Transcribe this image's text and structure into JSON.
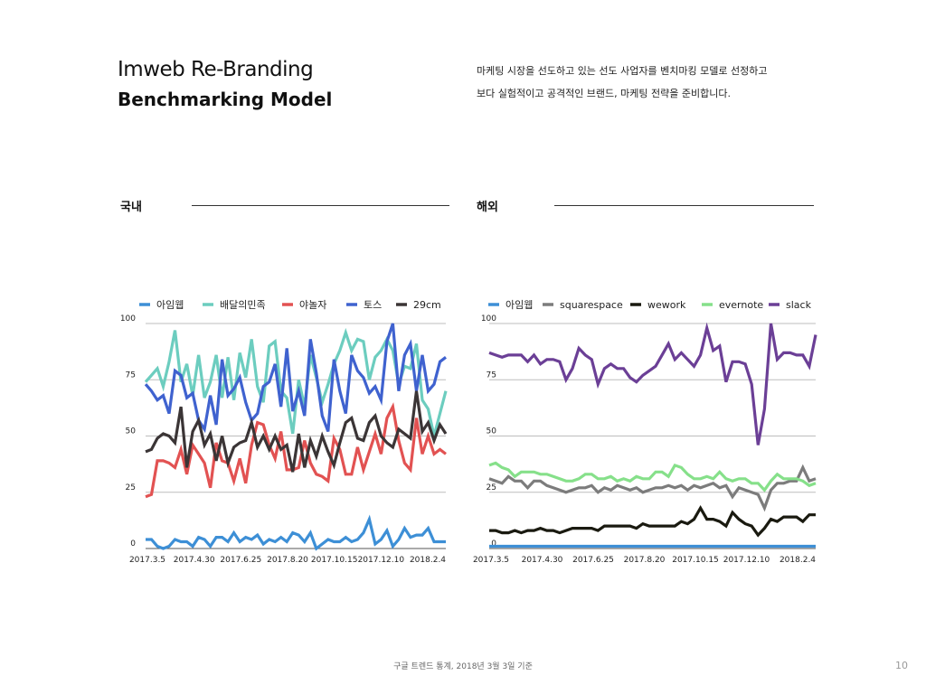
{
  "header": {
    "title_line1": "Imweb Re-Branding",
    "title_line2": "Benchmarking Model",
    "desc_line1": "마케팅 시장을 선도하고 있는 선도 사업자를 벤치마킹 모델로 선정하고",
    "desc_line2": "보다 실험적이고 공격적인 브랜드, 마케팅 전략을 준비합니다."
  },
  "sections": {
    "domestic": "국내",
    "overseas": "해외"
  },
  "footer": {
    "note": "구글 트렌드 통계, 2018년 3월 3일 기준",
    "page": "10"
  },
  "chart_data": [
    {
      "type": "line",
      "ylim": [
        0,
        100
      ],
      "yticks": [
        0,
        25,
        50,
        75,
        100
      ],
      "xticklabels": [
        "2017.3.5",
        "2017.4.30",
        "2017.6.25",
        "2017.8.20",
        "2017.10.15",
        "2017.12.10",
        "2018.2.4"
      ],
      "legend_position": "top",
      "grid": true,
      "series": [
        {
          "name": "아임웹",
          "color": "#3d8fd6",
          "values": [
            4,
            4,
            1,
            0,
            1,
            4,
            3,
            3,
            1,
            5,
            4,
            1,
            5,
            5,
            3,
            7,
            3,
            5,
            4,
            6,
            2,
            4,
            3,
            5,
            3,
            7,
            6,
            3,
            7,
            0,
            2,
            4,
            3,
            3,
            5,
            3,
            4,
            7,
            13,
            2,
            4,
            8,
            1,
            4,
            9,
            5,
            6,
            6,
            9,
            3,
            3,
            3
          ]
        },
        {
          "name": "배달의민족",
          "color": "#6ccdbf",
          "values": [
            74,
            77,
            80,
            72,
            83,
            97,
            74,
            82,
            68,
            86,
            67,
            74,
            86,
            67,
            85,
            66,
            87,
            76,
            93,
            72,
            65,
            90,
            92,
            70,
            67,
            51,
            75,
            63,
            86,
            76,
            65,
            73,
            82,
            88,
            96,
            88,
            93,
            92,
            75,
            85,
            88,
            93,
            88,
            73,
            81,
            80,
            91,
            66,
            62,
            50,
            60,
            70
          ]
        },
        {
          "name": "야놀자",
          "color": "#e25252",
          "values": [
            23,
            24,
            39,
            39,
            38,
            36,
            44,
            33,
            46,
            42,
            38,
            27,
            47,
            39,
            38,
            30,
            40,
            29,
            46,
            56,
            55,
            46,
            40,
            52,
            35,
            35,
            36,
            48,
            38,
            33,
            32,
            30,
            49,
            44,
            33,
            33,
            45,
            35,
            43,
            51,
            42,
            58,
            63,
            48,
            38,
            35,
            58,
            42,
            50,
            42,
            44,
            42
          ]
        },
        {
          "name": "토스",
          "color": "#3f62cf",
          "values": [
            73,
            70,
            66,
            68,
            60,
            79,
            77,
            67,
            69,
            57,
            53,
            68,
            55,
            84,
            68,
            71,
            76,
            65,
            57,
            60,
            72,
            74,
            82,
            63,
            89,
            61,
            70,
            59,
            93,
            78,
            59,
            52,
            84,
            70,
            60,
            86,
            79,
            76,
            69,
            72,
            66,
            92,
            100,
            70,
            86,
            91,
            70,
            86,
            70,
            73,
            83,
            85
          ]
        },
        {
          "name": "29cm",
          "color": "#3b3536",
          "values": [
            43,
            44,
            49,
            51,
            50,
            47,
            63,
            36,
            52,
            57,
            46,
            51,
            39,
            50,
            38,
            45,
            47,
            48,
            56,
            45,
            50,
            44,
            50,
            44,
            46,
            34,
            51,
            36,
            48,
            41,
            50,
            43,
            37,
            47,
            56,
            58,
            49,
            48,
            56,
            59,
            50,
            47,
            45,
            53,
            51,
            49,
            70,
            52,
            56,
            48,
            55,
            51
          ]
        }
      ]
    },
    {
      "type": "line",
      "ylim": [
        0,
        100
      ],
      "yticks": [
        0,
        25,
        50,
        75,
        100
      ],
      "xticklabels": [
        "2017.3.5",
        "2017.4.30",
        "2017.6.25",
        "2017.8.20",
        "2017.10.15",
        "2017.12.10",
        "2018.2.4"
      ],
      "legend_position": "top",
      "grid": true,
      "series": [
        {
          "name": "아임웹",
          "color": "#3d8fd6",
          "values": [
            1,
            1,
            1,
            1,
            1,
            1,
            1,
            1,
            1,
            1,
            1,
            1,
            1,
            1,
            1,
            1,
            1,
            1,
            1,
            1,
            1,
            1,
            1,
            1,
            1,
            1,
            1,
            1,
            1,
            1,
            1,
            1,
            1,
            1,
            1,
            1,
            1,
            1,
            1,
            1,
            1,
            1,
            1,
            1,
            1,
            1,
            1,
            1,
            1,
            1,
            1,
            1
          ]
        },
        {
          "name": "squarespace",
          "color": "#7c7c7c",
          "values": [
            31,
            30,
            29,
            32,
            30,
            30,
            27,
            30,
            30,
            28,
            27,
            26,
            25,
            26,
            27,
            27,
            28,
            25,
            27,
            26,
            28,
            27,
            26,
            27,
            25,
            26,
            27,
            27,
            28,
            27,
            28,
            26,
            28,
            27,
            28,
            29,
            27,
            28,
            23,
            27,
            26,
            25,
            24,
            18,
            26,
            29,
            29,
            30,
            30,
            36,
            30,
            31
          ]
        },
        {
          "name": "wework",
          "color": "#1a1a10",
          "values": [
            8,
            8,
            7,
            7,
            8,
            7,
            8,
            8,
            9,
            8,
            8,
            7,
            8,
            9,
            9,
            9,
            9,
            8,
            10,
            10,
            10,
            10,
            10,
            9,
            11,
            10,
            10,
            10,
            10,
            10,
            12,
            11,
            13,
            18,
            13,
            13,
            12,
            10,
            16,
            13,
            11,
            10,
            6,
            9,
            13,
            12,
            14,
            14,
            14,
            12,
            15,
            15
          ]
        },
        {
          "name": "evernote",
          "color": "#86e08a",
          "values": [
            37,
            38,
            36,
            35,
            32,
            34,
            34,
            34,
            33,
            33,
            32,
            31,
            30,
            30,
            31,
            33,
            33,
            31,
            31,
            32,
            30,
            31,
            30,
            32,
            31,
            31,
            34,
            34,
            32,
            37,
            36,
            33,
            31,
            31,
            32,
            31,
            34,
            31,
            30,
            31,
            31,
            29,
            29,
            26,
            30,
            33,
            31,
            31,
            31,
            30,
            28,
            29
          ]
        },
        {
          "name": "slack",
          "color": "#6b3f96",
          "values": [
            87,
            86,
            85,
            86,
            86,
            86,
            83,
            86,
            82,
            84,
            84,
            83,
            75,
            80,
            89,
            86,
            84,
            73,
            80,
            82,
            80,
            80,
            76,
            74,
            77,
            79,
            81,
            86,
            91,
            84,
            87,
            84,
            81,
            86,
            98,
            88,
            90,
            74,
            83,
            83,
            82,
            73,
            46,
            62,
            100,
            84,
            87,
            87,
            86,
            86,
            81,
            95
          ]
        }
      ]
    }
  ]
}
